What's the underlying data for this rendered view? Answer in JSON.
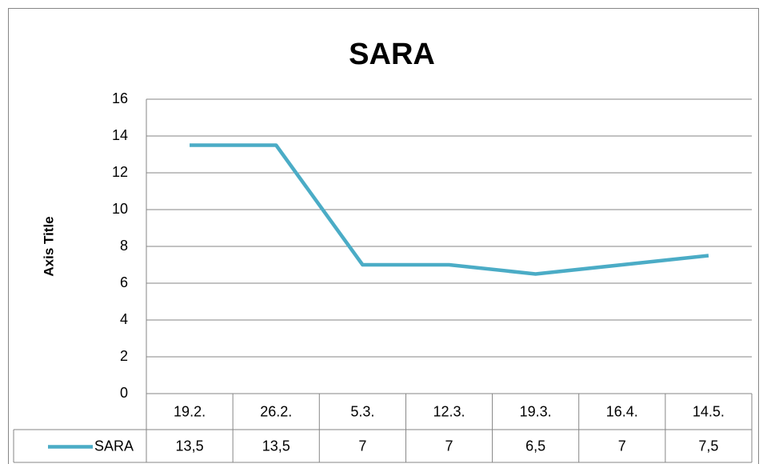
{
  "chart_data": {
    "type": "line",
    "title": "SARA",
    "y_axis_label": "Axis Title",
    "categories": [
      "19.2.",
      "26.2.",
      "5.3.",
      "12.3.",
      "19.3.",
      "16.4.",
      "14.5."
    ],
    "series": [
      {
        "name": "SARA",
        "color": "#4bacc6",
        "values": [
          13.5,
          13.5,
          7,
          7,
          6.5,
          7,
          7.5
        ],
        "value_labels": [
          "13,5",
          "13,5",
          "7",
          "7",
          "6,5",
          "7",
          "7,5"
        ]
      }
    ],
    "ylim": [
      0,
      16
    ],
    "yticks": [
      0,
      2,
      4,
      6,
      8,
      10,
      12,
      14,
      16
    ],
    "grid": true
  }
}
